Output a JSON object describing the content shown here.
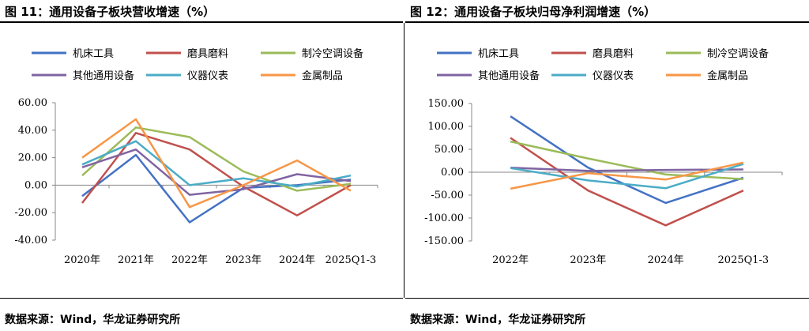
{
  "charts": [
    {
      "figure_title": "图 11：通用设备子板块营收增速（%）",
      "source": "数据来源：Wind，华龙证券研究所"
    },
    {
      "figure_title": "图 12：通用设备子板块归母净利润增速（%）",
      "source": "数据来源：Wind，华龙证券研究所"
    }
  ],
  "chart_data": [
    {
      "type": "line",
      "title": "",
      "xlabel": "",
      "ylabel": "",
      "categories": [
        "2020年",
        "2021年",
        "2022年",
        "2023年",
        "2024年",
        "2025Q1-3"
      ],
      "ylim": [
        -40,
        60
      ],
      "yticks": [
        "60.00",
        "40.00",
        "20.00",
        "0.00",
        "-20.00",
        "-40.00"
      ],
      "ytick_values": [
        60,
        40,
        20,
        0,
        -20,
        -40
      ],
      "grid": false,
      "legend": "top",
      "series": [
        {
          "name": "机床工具",
          "color": "#4472C4",
          "values": [
            -8,
            22,
            -27,
            -2,
            0,
            4
          ]
        },
        {
          "name": "磨具磨料",
          "color": "#C0504D",
          "values": [
            -13,
            38,
            26,
            -1,
            -22,
            0
          ]
        },
        {
          "name": "制冷空调设备",
          "color": "#9BBB59",
          "values": [
            7,
            42,
            35,
            10,
            -4,
            1
          ]
        },
        {
          "name": "其他通用设备",
          "color": "#8064A2",
          "values": [
            13,
            26,
            -7,
            -3,
            8,
            3
          ]
        },
        {
          "name": "仪器仪表",
          "color": "#4BACC6",
          "values": [
            15,
            32,
            0,
            5,
            -1,
            7
          ]
        },
        {
          "name": "金属制品",
          "color": "#F79646",
          "values": [
            20,
            48,
            -16,
            0,
            18,
            -4
          ]
        }
      ]
    },
    {
      "type": "line",
      "title": "",
      "xlabel": "",
      "ylabel": "",
      "categories": [
        "2022年",
        "2023年",
        "2024年",
        "2025Q1-3"
      ],
      "ylim": [
        -150,
        150
      ],
      "yticks": [
        "150.00",
        "100.00",
        "50.00",
        "0.00",
        "-50.00",
        "-100.00",
        "-150.00"
      ],
      "ytick_values": [
        150,
        100,
        50,
        0,
        -50,
        -100,
        -150
      ],
      "grid": false,
      "legend": "top",
      "series": [
        {
          "name": "机床工具",
          "color": "#4472C4",
          "values": [
            122,
            10,
            -67,
            -12
          ]
        },
        {
          "name": "磨具磨料",
          "color": "#C0504D",
          "values": [
            75,
            -40,
            -116,
            -40
          ]
        },
        {
          "name": "制冷空调设备",
          "color": "#9BBB59",
          "values": [
            67,
            30,
            -5,
            -15
          ]
        },
        {
          "name": "其他通用设备",
          "color": "#8064A2",
          "values": [
            10,
            3,
            5,
            6
          ]
        },
        {
          "name": "仪器仪表",
          "color": "#4BACC6",
          "values": [
            9,
            -18,
            -35,
            18
          ]
        },
        {
          "name": "金属制品",
          "color": "#F79646",
          "values": [
            -36,
            -2,
            -16,
            21
          ]
        }
      ]
    }
  ]
}
